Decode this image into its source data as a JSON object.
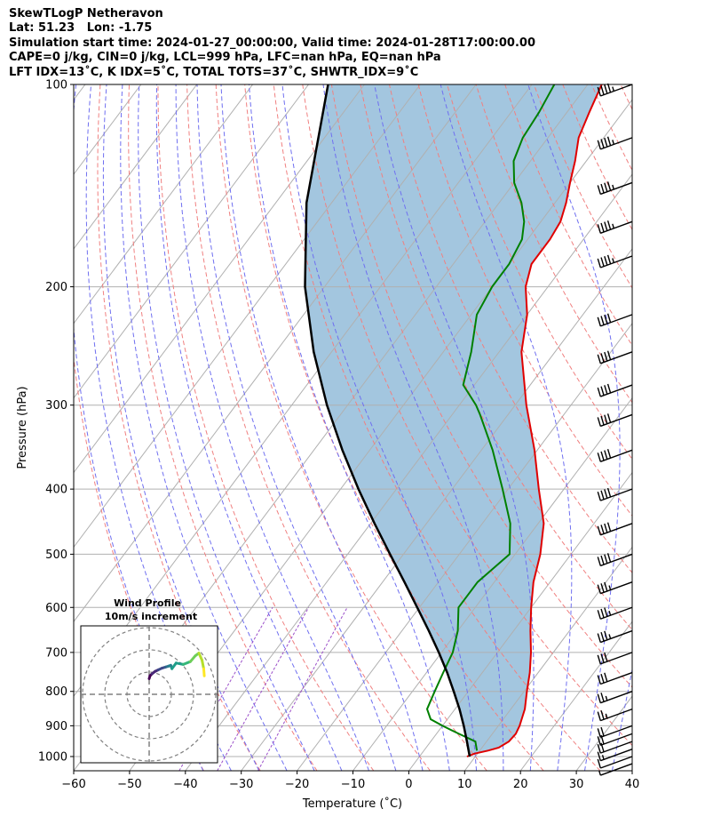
{
  "header": {
    "lines": [
      "SkewTLogP Netheravon",
      "Lat: 51.23   Lon: -1.75",
      "Simulation start time: 2024-01-27_00:00:00, Valid time: 2024-01-28T17:00:00.00",
      "CAPE=0 j/kg, CIN=0 j/kg, LCL=999 hPa, LFC=nan hPa, EQ=nan hPa",
      "LFT IDX=13˚C, K IDX=5˚C, TOTAL TOTS=37˚C, SHWTR_IDX=9˚C"
    ]
  },
  "chart_data": {
    "type": "line",
    "chart_kind": "skew-T log-p diagram",
    "xlabel": "Temperature (˚C)",
    "ylabel": "Pressure (hPa)",
    "xlim": [
      -60,
      40
    ],
    "ylim": [
      1050,
      100
    ],
    "yscale": "log",
    "xticks": [
      "−60",
      "−50",
      "−40",
      "−30",
      "−20",
      "−10",
      "0",
      "10",
      "20",
      "30",
      "40"
    ],
    "xtick_values": [
      -60,
      -50,
      -40,
      -30,
      -20,
      -10,
      0,
      10,
      20,
      30,
      40
    ],
    "yticks": [
      "100",
      "200",
      "300",
      "400",
      "500",
      "600",
      "700",
      "800",
      "900",
      "1000"
    ],
    "ytick_values": [
      100,
      200,
      300,
      400,
      500,
      600,
      700,
      800,
      900,
      1000
    ],
    "grid": true,
    "colors": {
      "temperature": "#e00000",
      "dewpoint": "#008000",
      "parcel": "#000000",
      "fill": "#a3c6df",
      "dry_adiabats": "#f08080",
      "moist_adiabats": "#6f6ff0",
      "mixing_ratio": "#9b4fc9",
      "isotherms": "#b0b0b0"
    },
    "series": [
      {
        "key": "temperature",
        "pressure": [
          1000,
          990,
          980,
          970,
          950,
          925,
          900,
          850,
          800,
          750,
          700,
          650,
          600,
          550,
          500,
          450,
          400,
          350,
          300,
          250,
          220,
          200,
          185,
          170,
          160,
          150,
          140,
          130,
          120,
          110,
          100
        ],
        "temperature": [
          8.5,
          9.5,
          11.5,
          13.0,
          14.0,
          14.2,
          13.8,
          12.5,
          10.5,
          8.5,
          6.0,
          3.0,
          0.0,
          -3.0,
          -5.5,
          -9.0,
          -14.5,
          -20.5,
          -28.0,
          -36.0,
          -40.0,
          -44.0,
          -46.0,
          -46.0,
          -46.5,
          -48.0,
          -50.0,
          -52.0,
          -54.5,
          -56.0,
          -57.5
        ]
      },
      {
        "key": "dewpoint",
        "pressure": [
          980,
          950,
          925,
          900,
          880,
          850,
          800,
          750,
          700,
          650,
          600,
          550,
          500,
          450,
          400,
          350,
          310,
          300,
          280,
          250,
          220,
          200,
          185,
          170,
          160,
          150,
          140,
          130,
          120,
          110,
          100
        ],
        "dewpoint": [
          9.5,
          8.0,
          4.0,
          0.0,
          -3.0,
          -5.0,
          -6.0,
          -7.0,
          -8.0,
          -10.0,
          -13.0,
          -13.0,
          -11.0,
          -15.0,
          -21.0,
          -28.0,
          -35.0,
          -37.0,
          -42.0,
          -45.0,
          -49.0,
          -50.0,
          -50.0,
          -51.0,
          -53.0,
          -56.0,
          -60.0,
          -63.0,
          -64.5,
          -65.0,
          -66.0
        ]
      },
      {
        "key": "parcel",
        "pressure": [
          1000,
          950,
          900,
          850,
          800,
          750,
          700,
          650,
          600,
          550,
          500,
          450,
          400,
          350,
          300,
          250,
          200,
          150,
          100
        ],
        "temperature": [
          9.0,
          6.5,
          3.8,
          0.8,
          -2.6,
          -6.3,
          -10.5,
          -15.2,
          -20.4,
          -26.1,
          -32.4,
          -39.3,
          -46.8,
          -54.9,
          -63.7,
          -73.2,
          -83.5,
          -94.5,
          -106.5
        ]
      }
    ],
    "wind_barbs": {
      "pressure": [
        100,
        120,
        140,
        160,
        180,
        220,
        250,
        280,
        310,
        350,
        400,
        450,
        500,
        550,
        600,
        650,
        700,
        750,
        800,
        850,
        900,
        925,
        950,
        975,
        1000,
        1025
      ],
      "speed_kt": [
        45,
        45,
        45,
        45,
        45,
        40,
        40,
        40,
        40,
        40,
        40,
        40,
        40,
        35,
        35,
        35,
        30,
        30,
        25,
        25,
        20,
        20,
        20,
        15,
        10,
        5
      ]
    },
    "hodograph": {
      "title": "Wind Profile",
      "subtitle": "10m/s increment",
      "u": [
        0,
        0.3,
        1.0,
        2.0,
        3.2,
        4.5,
        5.8,
        6.8,
        7.6,
        8.0,
        9.5,
        12.0,
        14.5,
        16.2,
        17.5,
        18.6,
        19.2,
        19.4
      ],
      "v": [
        5.5,
        6.5,
        7.2,
        8.0,
        8.6,
        9.2,
        9.6,
        9.9,
        10.2,
        9.0,
        11.0,
        10.5,
        11.5,
        13.5,
        14.5,
        12.0,
        9.0,
        6.5
      ]
    }
  }
}
